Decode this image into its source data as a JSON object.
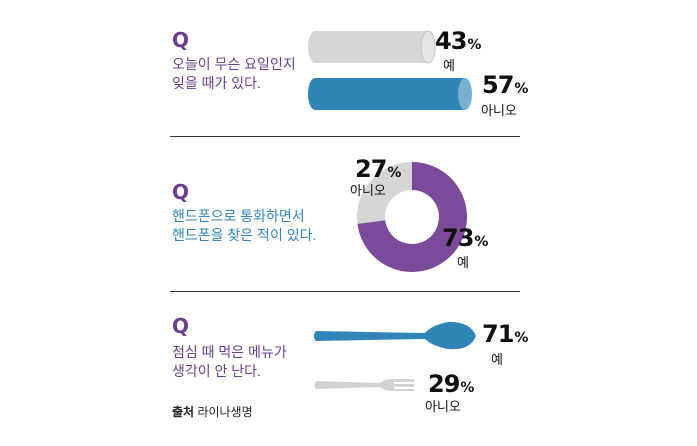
{
  "colors": {
    "purple": "#7b4a9a",
    "blue": "#2f85b5",
    "grey": "#d6d6d6",
    "dark_grey_text": "#111111"
  },
  "source": {
    "label": "출처",
    "name": "라이나생명"
  },
  "chart_data": [
    {
      "type": "bar",
      "question_mark": "Q",
      "question_lines": [
        "오늘이 무슨 요일인지",
        "잊을 때가 있다."
      ],
      "categories": [
        "예",
        "아니오"
      ],
      "values": [
        43,
        57
      ],
      "value_labels": [
        "43",
        "57"
      ],
      "unit": "%",
      "icon": "cylinder-bar",
      "colors": [
        "#d6d6d6",
        "#2f85b5"
      ],
      "text_color": "#6b3d8f"
    },
    {
      "type": "pie",
      "question_mark": "Q",
      "question_lines": [
        "핸드폰으로 통화하면서",
        "핸드폰을 찾은 적이 있다."
      ],
      "categories": [
        "아니오",
        "예"
      ],
      "values": [
        27,
        73
      ],
      "value_labels": [
        "27",
        "73"
      ],
      "unit": "%",
      "icon": "donut",
      "colors": [
        "#d6d6d6",
        "#7b4a9a"
      ],
      "text_color": "#2f85b5"
    },
    {
      "type": "bar",
      "question_mark": "Q",
      "question_lines": [
        "점심 때 먹은 메뉴가",
        "생각이 안 난다."
      ],
      "categories": [
        "예",
        "아니오"
      ],
      "values": [
        71,
        29
      ],
      "value_labels": [
        "71",
        "29"
      ],
      "unit": "%",
      "icon": [
        "spoon-icon",
        "fork-icon"
      ],
      "colors": [
        "#2f85b5",
        "#d6d6d6"
      ],
      "text_color": "#6b3d8f"
    }
  ]
}
